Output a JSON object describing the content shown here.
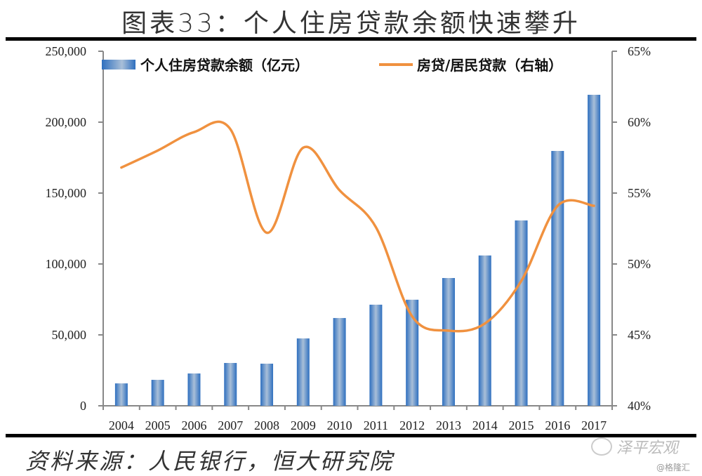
{
  "title": "图表33：个人住房贷款余额快速攀升",
  "source": "资料来源：人民银行，恒大研究院",
  "watermark": "泽平宏观",
  "credit": "@格隆汇",
  "colors": {
    "bar": "#2e6fbf",
    "bar_light": "#a9bfd8",
    "line": "#f0913f",
    "axis": "#888888"
  },
  "chart_data": {
    "type": "bar+line",
    "title": "图表33：个人住房贷款余额快速攀升",
    "categories": [
      "2004",
      "2005",
      "2006",
      "2007",
      "2008",
      "2009",
      "2010",
      "2011",
      "2012",
      "2013",
      "2014",
      "2015",
      "2016",
      "2017"
    ],
    "series": [
      {
        "name": "个人住房贷款余额（亿元）",
        "type": "bar",
        "axis": "left",
        "values": [
          15800,
          18300,
          22800,
          30200,
          29700,
          47500,
          61900,
          71300,
          74800,
          90100,
          106000,
          130700,
          179700,
          219300
        ]
      },
      {
        "name": "房贷/居民贷款（右轴）",
        "type": "line",
        "axis": "right",
        "values": [
          56.8,
          58.0,
          59.3,
          59.5,
          52.2,
          58.2,
          55.2,
          52.6,
          46.3,
          45.3,
          45.8,
          48.8,
          54.1,
          54.1
        ]
      }
    ],
    "left_axis": {
      "min": 0,
      "max": 250000,
      "ticks": [
        "0",
        "50,000",
        "100,000",
        "150,000",
        "200,000",
        "250,000"
      ]
    },
    "right_axis": {
      "min": 40,
      "max": 65,
      "ticks": [
        "40%",
        "45%",
        "50%",
        "55%",
        "60%",
        "65%"
      ]
    },
    "legend": {
      "placement": "top",
      "items": [
        "个人住房贷款余额（亿元）",
        "房贷/居民贷款（右轴）"
      ]
    },
    "grid": false
  }
}
